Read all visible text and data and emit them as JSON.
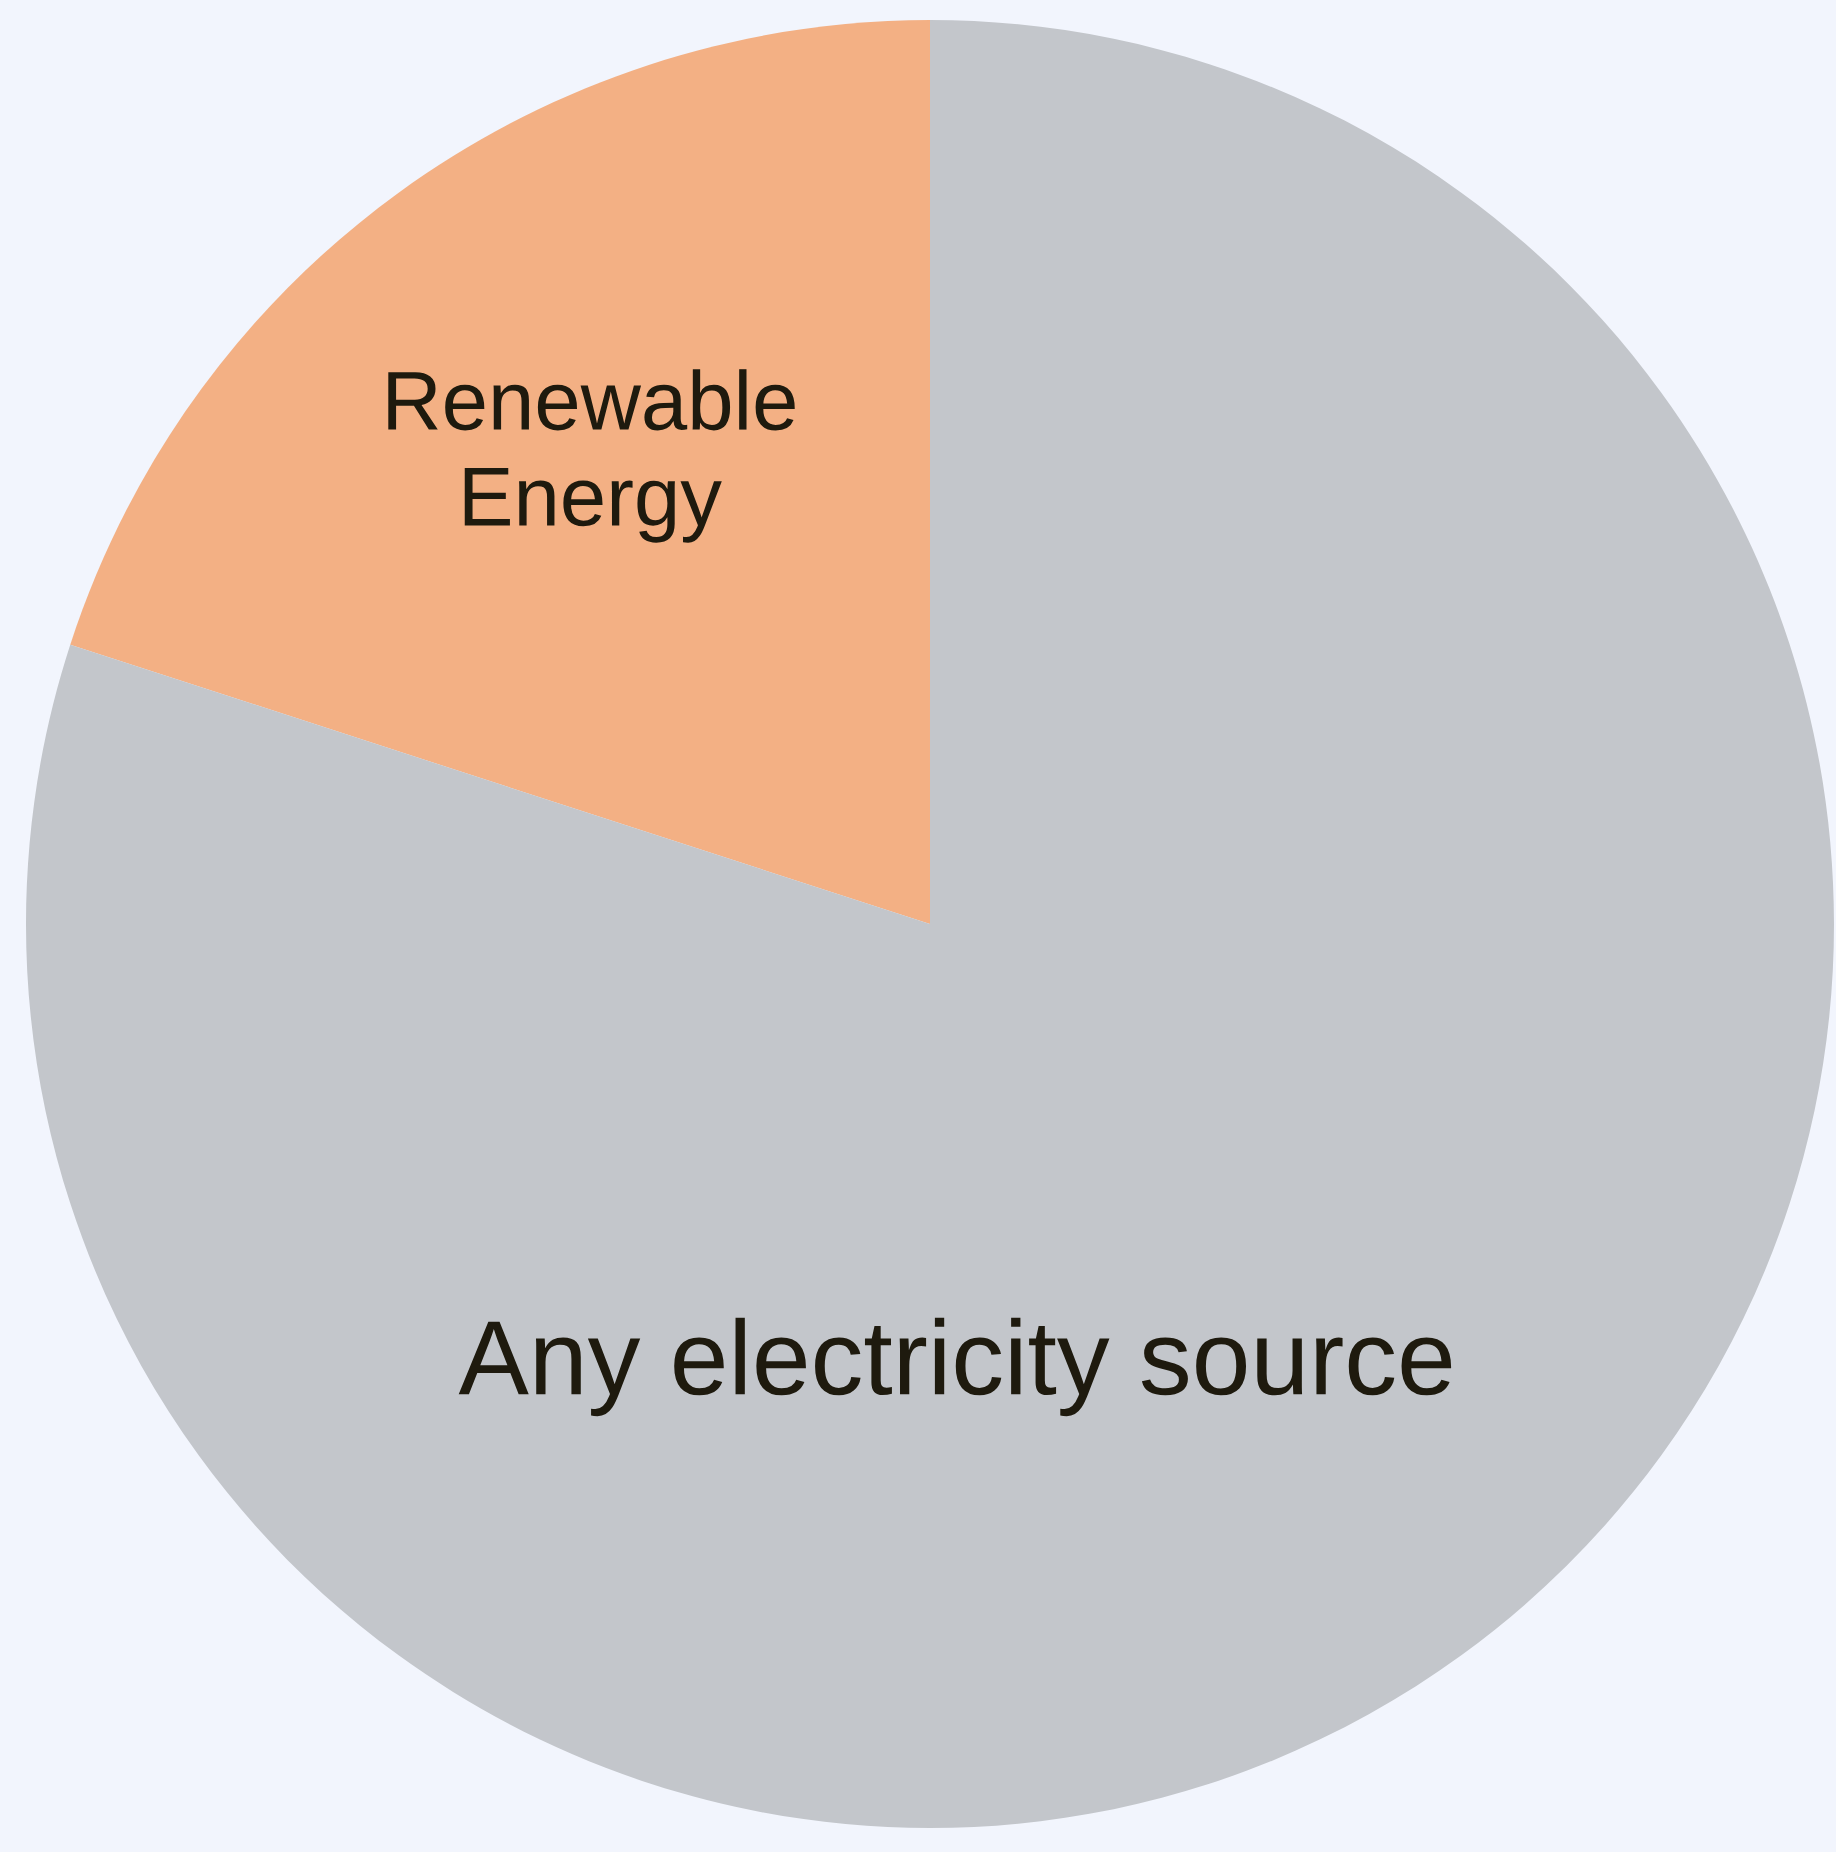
{
  "chart_data": {
    "type": "pie",
    "categories": [
      "Renewable Energy",
      "Any electricity source"
    ],
    "values": [
      20,
      80
    ],
    "colors": [
      "#f3b084",
      "#c3c6cb"
    ]
  }
}
